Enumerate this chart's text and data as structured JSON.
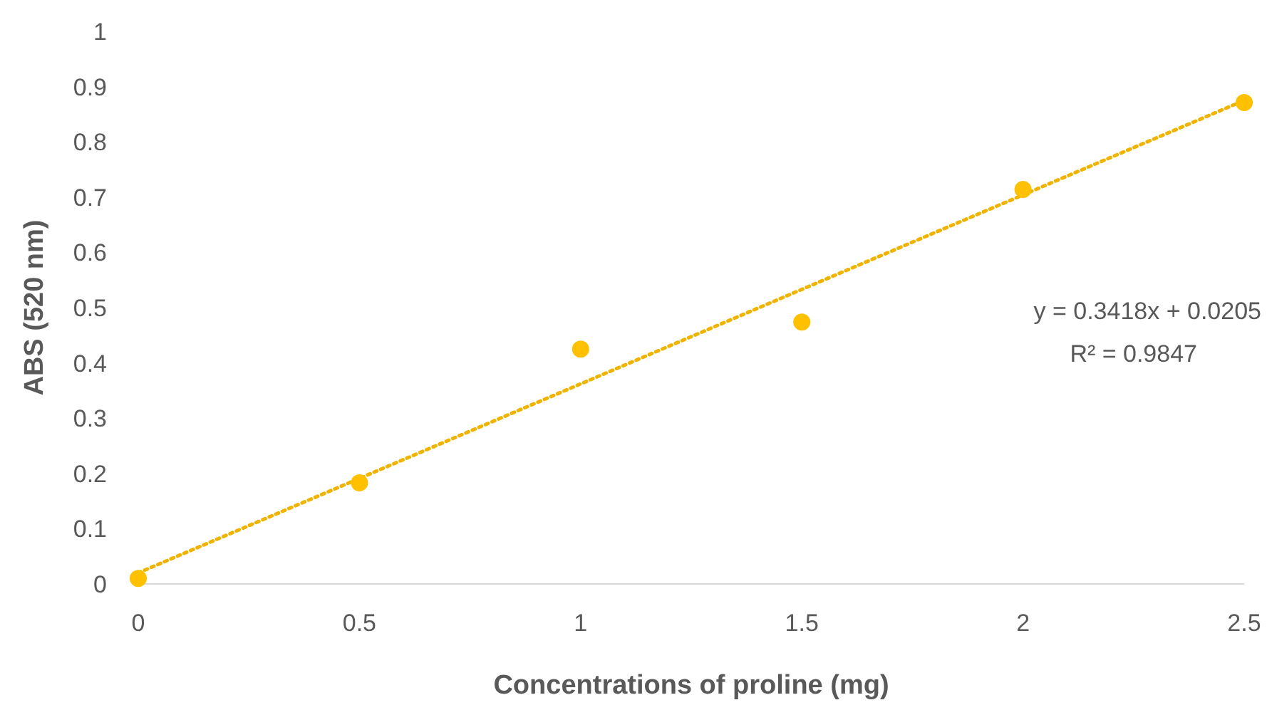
{
  "chart_data": {
    "type": "scatter",
    "xlabel": "Concentrations of proline (mg)",
    "ylabel": "ABS (520 nm)",
    "xlim": [
      0,
      2.5
    ],
    "ylim": [
      0,
      1
    ],
    "xticks": [
      0,
      0.5,
      1,
      1.5,
      2,
      2.5
    ],
    "yticks": [
      0,
      0.1,
      0.2,
      0.3,
      0.4,
      0.5,
      0.6,
      0.7,
      0.8,
      0.9,
      1
    ],
    "series": [
      {
        "marker": "circle",
        "color": "#ffc000",
        "x": [
          0,
          0.5,
          1,
          1.5,
          2,
          2.5
        ],
        "values": [
          0.01,
          0.183,
          0.425,
          0.474,
          0.714,
          0.871
        ]
      },
      {
        "type": "line",
        "color": "#f0b400",
        "line_style": "dotted",
        "x": [
          0,
          2.5
        ],
        "values": [
          0.02,
          0.875
        ]
      }
    ],
    "annotations": [
      "y = 0.3418x + 0.0205",
      "R² = 0.9847"
    ]
  }
}
